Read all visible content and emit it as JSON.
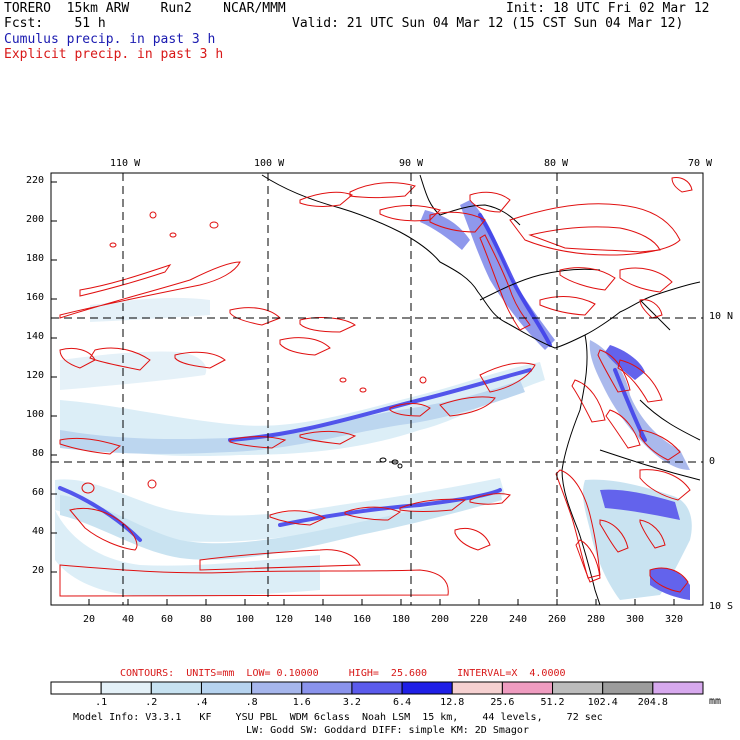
{
  "header": {
    "model": "TORERO  15km ARW    Run2    NCAR/MMM",
    "init": "Init: 18 UTC Fri 02 Mar 12",
    "fcst": "Fcst:    51 h",
    "valid": "Valid: 21 UTC Sun 04 Mar 12 (15 CST Sun 04 Mar 12)",
    "field1": "Cumulus precip. in past 3 h",
    "field2": "Explicit precip. in past 3 h"
  },
  "colors": {
    "field1": "#1a1ab0",
    "field2": "#d81818",
    "contour": "#e01010",
    "coast": "#000000"
  },
  "map": {
    "lon_labels": [
      "110 W",
      "100 W",
      "90 W",
      "80 W",
      "70 W"
    ],
    "lat_labels": [
      "10 N",
      "0",
      "10 S"
    ],
    "y_ticks": [
      "220",
      "200",
      "180",
      "160",
      "140",
      "120",
      "100",
      "80",
      "60",
      "40",
      "20"
    ],
    "x_ticks": [
      "20",
      "40",
      "60",
      "80",
      "100",
      "120",
      "140",
      "160",
      "180",
      "200",
      "220",
      "240",
      "260",
      "280",
      "300",
      "320"
    ]
  },
  "contour_info": {
    "text": "CONTOURS:  UNITS=mm  LOW= 0.10000     HIGH=  25.600     INTERVAL=X  4.0000"
  },
  "colorbar": {
    "labels": [
      ".1",
      ".2",
      ".4",
      ".8",
      "1.6",
      "3.2",
      "6.4",
      "12.8",
      "25.6",
      "51.2",
      "102.4",
      "204.8"
    ],
    "colors": [
      "#ffffff",
      "#e4f1f8",
      "#c7e2f1",
      "#b6d3ef",
      "#a6b6ec",
      "#8a93ec",
      "#5b5bec",
      "#1f1fe6",
      "#f6d1d1",
      "#ef9cc0",
      "#bcbcbc",
      "#9c9c9c",
      "#d7a9ee"
    ],
    "unit": "mm"
  },
  "footer": {
    "line1": "Model Info: V3.3.1   KF    YSU PBL  WDM 6class  Noah LSM  15 km,    44 levels,    72 sec",
    "line2": "LW: Godd SW: Goddard DIFF: simple KM: 2D Smagor"
  }
}
